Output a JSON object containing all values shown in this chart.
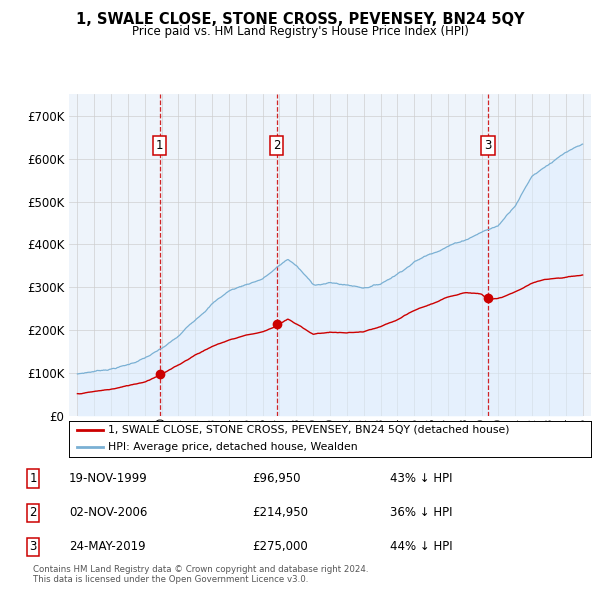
{
  "title": "1, SWALE CLOSE, STONE CROSS, PEVENSEY, BN24 5QY",
  "subtitle": "Price paid vs. HM Land Registry's House Price Index (HPI)",
  "legend_line1": "1, SWALE CLOSE, STONE CROSS, PEVENSEY, BN24 5QY (detached house)",
  "legend_line2": "HPI: Average price, detached house, Wealden",
  "footer_line1": "Contains HM Land Registry data © Crown copyright and database right 2024.",
  "footer_line2": "This data is licensed under the Open Government Licence v3.0.",
  "transactions": [
    {
      "num": 1,
      "date": "19-NOV-1999",
      "price": 96950,
      "price_str": "£96,950",
      "pct": "43%",
      "year": 1999.88
    },
    {
      "num": 2,
      "date": "02-NOV-2006",
      "price": 214950,
      "price_str": "£214,950",
      "pct": "36%",
      "year": 2006.83
    },
    {
      "num": 3,
      "date": "24-MAY-2019",
      "price": 275000,
      "price_str": "£275,000",
      "pct": "44%",
      "year": 2019.39
    }
  ],
  "property_color": "#cc0000",
  "hpi_color": "#7ab0d4",
  "hpi_fill_color": "#ddeeff",
  "vline_color": "#cc0000",
  "background_color": "#ffffff",
  "grid_color": "#cccccc",
  "chart_bg": "#eef4fb",
  "ylim": [
    0,
    750000
  ],
  "yticks": [
    0,
    100000,
    200000,
    300000,
    400000,
    500000,
    600000,
    700000
  ],
  "ytick_labels": [
    "£0",
    "£100K",
    "£200K",
    "£300K",
    "£400K",
    "£500K",
    "£600K",
    "£700K"
  ],
  "xlim_start": 1994.5,
  "xlim_end": 2025.5,
  "hpi_keypoints": [
    [
      1995.0,
      98000
    ],
    [
      1996.0,
      105000
    ],
    [
      1997.0,
      112000
    ],
    [
      1998.0,
      122000
    ],
    [
      1999.0,
      138000
    ],
    [
      2000.0,
      158000
    ],
    [
      2001.0,
      185000
    ],
    [
      2002.0,
      225000
    ],
    [
      2003.0,
      265000
    ],
    [
      2004.0,
      295000
    ],
    [
      2005.0,
      310000
    ],
    [
      2006.0,
      325000
    ],
    [
      2007.0,
      355000
    ],
    [
      2007.5,
      370000
    ],
    [
      2008.0,
      355000
    ],
    [
      2009.0,
      310000
    ],
    [
      2010.0,
      315000
    ],
    [
      2011.0,
      310000
    ],
    [
      2012.0,
      305000
    ],
    [
      2013.0,
      315000
    ],
    [
      2014.0,
      340000
    ],
    [
      2015.0,
      370000
    ],
    [
      2016.0,
      390000
    ],
    [
      2017.0,
      410000
    ],
    [
      2018.0,
      425000
    ],
    [
      2019.0,
      445000
    ],
    [
      2020.0,
      460000
    ],
    [
      2021.0,
      510000
    ],
    [
      2022.0,
      580000
    ],
    [
      2023.0,
      610000
    ],
    [
      2024.0,
      635000
    ],
    [
      2025.0,
      650000
    ]
  ],
  "prop_keypoints": [
    [
      1995.0,
      52000
    ],
    [
      1996.0,
      57000
    ],
    [
      1997.0,
      62000
    ],
    [
      1998.0,
      70000
    ],
    [
      1999.0,
      80000
    ],
    [
      1999.88,
      96950
    ],
    [
      2000.0,
      100000
    ],
    [
      2001.0,
      120000
    ],
    [
      2002.0,
      145000
    ],
    [
      2003.0,
      165000
    ],
    [
      2004.0,
      180000
    ],
    [
      2005.0,
      192000
    ],
    [
      2006.0,
      200000
    ],
    [
      2006.83,
      214950
    ],
    [
      2007.0,
      220000
    ],
    [
      2007.5,
      230000
    ],
    [
      2008.0,
      218000
    ],
    [
      2009.0,
      195000
    ],
    [
      2010.0,
      200000
    ],
    [
      2011.0,
      198000
    ],
    [
      2012.0,
      200000
    ],
    [
      2013.0,
      210000
    ],
    [
      2014.0,
      225000
    ],
    [
      2015.0,
      245000
    ],
    [
      2016.0,
      260000
    ],
    [
      2017.0,
      275000
    ],
    [
      2018.0,
      288000
    ],
    [
      2019.0,
      285000
    ],
    [
      2019.39,
      275000
    ],
    [
      2020.0,
      275000
    ],
    [
      2021.0,
      290000
    ],
    [
      2022.0,
      310000
    ],
    [
      2023.0,
      320000
    ],
    [
      2024.0,
      325000
    ],
    [
      2025.0,
      330000
    ]
  ]
}
